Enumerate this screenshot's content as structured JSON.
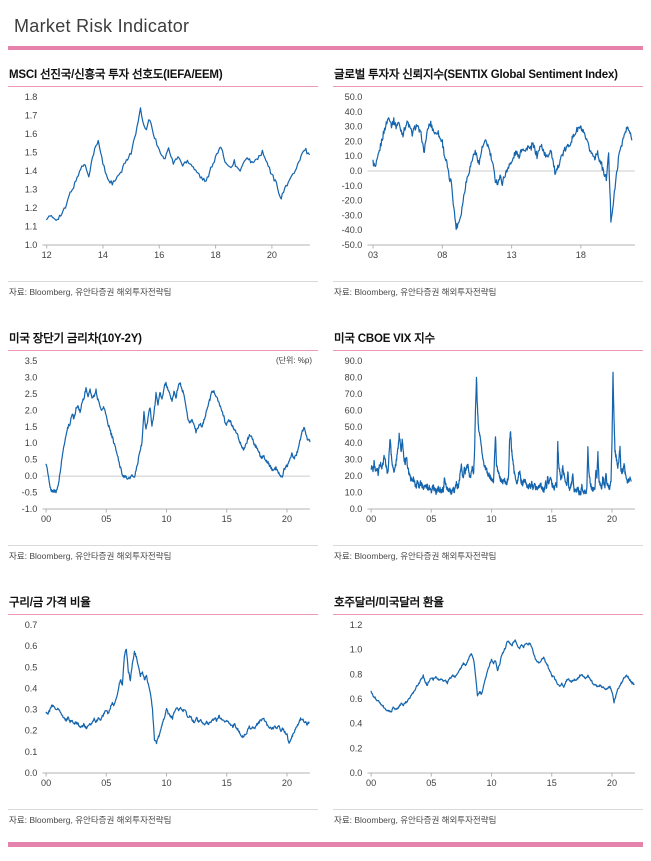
{
  "page": {
    "title": "Market Risk Indicator",
    "bar_pink": "#E583AC",
    "rule_pink": "#F096B7",
    "line_blue": "#1565AE",
    "axis_gray": "#b3b3b3",
    "zero_gray": "#cccccc"
  },
  "chart_data": [
    {
      "type": "line",
      "title": "MSCI 선진국/신흥국 투자 선호도(IEFA/EEM)",
      "source": "자료: Bloomberg, 유안타증권 해외투자전략팀",
      "xlim": [
        2011.85,
        2021.35
      ],
      "ylim": [
        1.0,
        1.8
      ],
      "yticks": [
        1.8,
        1.7,
        1.6,
        1.5,
        1.4,
        1.3,
        1.2,
        1.1,
        1.0
      ],
      "ytick_labels": [
        "1.8",
        "1.7",
        "1.6",
        "1.5",
        "1.4",
        "1.3",
        "1.2",
        "1.1",
        "1.0"
      ],
      "xticks": [
        2012,
        2014,
        2016,
        2018,
        2020
      ],
      "xtick_labels": [
        "12",
        "14",
        "16",
        "18",
        "20"
      ],
      "zero_line": false,
      "jitter": 0.012,
      "series_x": [
        2012.0,
        2021.33
      ],
      "values": [
        1.15,
        1.15,
        1.14,
        1.16,
        1.2,
        1.28,
        1.33,
        1.4,
        1.44,
        1.38,
        1.5,
        1.56,
        1.44,
        1.36,
        1.33,
        1.36,
        1.4,
        1.46,
        1.5,
        1.6,
        1.73,
        1.62,
        1.68,
        1.58,
        1.52,
        1.46,
        1.52,
        1.44,
        1.48,
        1.43,
        1.46,
        1.43,
        1.4,
        1.36,
        1.34,
        1.42,
        1.47,
        1.53,
        1.46,
        1.42,
        1.45,
        1.4,
        1.44,
        1.47,
        1.44,
        1.47,
        1.5,
        1.44,
        1.38,
        1.33,
        1.25,
        1.32,
        1.36,
        1.4,
        1.46,
        1.52,
        1.49
      ]
    },
    {
      "type": "line",
      "title": "글로벌 투자자 신뢰지수(SENTIX  Global Sentiment Index)",
      "source": "자료: Bloomberg, 유안타증권 해외투자전략팀",
      "xlim": [
        2002.6,
        2021.9
      ],
      "ylim": [
        -50,
        50
      ],
      "yticks": [
        50,
        40,
        30,
        20,
        10,
        0,
        -10,
        -20,
        -30,
        -40,
        -50
      ],
      "ytick_labels": [
        "50.0",
        "40.0",
        "30.0",
        "20.0",
        "10.0",
        "0.0",
        "-10.0",
        "-20.0",
        "-30.0",
        "-40.0",
        "-50.0"
      ],
      "xticks": [
        2003,
        2008,
        2013,
        2018
      ],
      "xtick_labels": [
        "03",
        "08",
        "13",
        "18"
      ],
      "zero_line": true,
      "jitter": 2.0,
      "series_x": [
        2003.0,
        2021.67
      ],
      "values": [
        6,
        2,
        8,
        15,
        22,
        28,
        33,
        37,
        31,
        34,
        30,
        33,
        28,
        25,
        30,
        33,
        29,
        25,
        29,
        31,
        27,
        24,
        12,
        22,
        30,
        32,
        28,
        25,
        27,
        22,
        20,
        10,
        5,
        -5,
        -8,
        -25,
        -38,
        -35,
        -30,
        -20,
        -10,
        -3,
        2,
        8,
        13,
        10,
        5,
        14,
        18,
        20,
        16,
        10,
        3,
        -6,
        -8,
        -4,
        -8,
        -3,
        0,
        5,
        5,
        10,
        13,
        9,
        14,
        16,
        13,
        17,
        14,
        18,
        15,
        10,
        15,
        17,
        13,
        9,
        11,
        15,
        6,
        -3,
        2,
        8,
        11,
        14,
        16,
        18,
        21,
        24,
        27,
        29,
        29,
        26,
        22,
        18,
        14,
        11,
        9,
        13,
        8,
        4,
        -2,
        -5,
        11,
        -33,
        -22,
        -8,
        5,
        15,
        20,
        25,
        29,
        27,
        21
      ]
    },
    {
      "type": "line",
      "title": "미국 장단기 금리차(10Y-2Y)",
      "unit_note": "(단위: %p)",
      "source": "자료: Bloomberg, 유안타증권 해외투자전략팀",
      "xlim": [
        1999.7,
        2021.9
      ],
      "ylim": [
        -1.0,
        3.5
      ],
      "yticks": [
        3.5,
        3.0,
        2.5,
        2.0,
        1.5,
        1.0,
        0.5,
        0.0,
        -0.5,
        -1.0
      ],
      "ytick_labels": [
        "3.5",
        "3.0",
        "2.5",
        "2.0",
        "1.5",
        "1.0",
        "0.5",
        "0.0",
        "-0.5",
        "-1.0"
      ],
      "xticks": [
        2000,
        2005,
        2010,
        2015,
        2020
      ],
      "xtick_labels": [
        "00",
        "05",
        "10",
        "15",
        "20"
      ],
      "zero_line": true,
      "jitter": 0.05,
      "series_x": [
        2000.0,
        2021.9
      ],
      "values": [
        0.4,
        0.05,
        -0.35,
        -0.48,
        -0.42,
        -0.5,
        -0.3,
        0.1,
        0.55,
        0.95,
        1.25,
        1.5,
        1.6,
        1.9,
        1.75,
        2.05,
        2.15,
        1.95,
        2.25,
        2.4,
        2.65,
        2.45,
        2.6,
        2.4,
        2.45,
        2.6,
        2.3,
        2.15,
        2.0,
        2.1,
        1.85,
        1.6,
        1.4,
        1.2,
        1.0,
        0.8,
        0.55,
        0.3,
        0.1,
        -0.05,
        0.0,
        -0.1,
        -0.05,
        0.02,
        -0.08,
        0.15,
        0.45,
        0.75,
        1.05,
        1.95,
        1.4,
        1.75,
        2.1,
        1.55,
        1.9,
        2.5,
        2.2,
        2.55,
        2.3,
        2.7,
        2.85,
        2.6,
        2.45,
        2.3,
        2.55,
        2.4,
        2.7,
        2.85,
        2.65,
        2.45,
        2.1,
        1.75,
        1.6,
        1.75,
        1.55,
        1.35,
        1.45,
        1.6,
        1.5,
        1.7,
        1.9,
        2.15,
        2.35,
        2.55,
        2.6,
        2.45,
        2.3,
        2.15,
        1.95,
        1.8,
        1.55,
        1.65,
        1.7,
        1.55,
        1.45,
        1.35,
        1.2,
        1.05,
        0.9,
        0.8,
        0.95,
        1.15,
        1.25,
        1.15,
        1.0,
        0.9,
        0.8,
        0.65,
        0.55,
        0.6,
        0.48,
        0.4,
        0.3,
        0.22,
        0.18,
        0.25,
        0.15,
        0.05,
        -0.04,
        0.2,
        0.28,
        0.35,
        0.55,
        0.68,
        0.55,
        0.62,
        0.8,
        1.05,
        1.3,
        1.52,
        1.3,
        1.1,
        1.05
      ]
    },
    {
      "type": "line",
      "title": "미국 CBOE VIX 지수",
      "source": "자료: Bloomberg, 유안타증권 해외투자전략팀",
      "xlim": [
        1999.7,
        2021.9
      ],
      "ylim": [
        0,
        90
      ],
      "yticks": [
        90,
        80,
        70,
        60,
        50,
        40,
        30,
        20,
        10,
        0
      ],
      "ytick_labels": [
        "90.0",
        "80.0",
        "70.0",
        "60.0",
        "50.0",
        "40.0",
        "30.0",
        "20.0",
        "10.0",
        "0.0"
      ],
      "xticks": [
        2000,
        2005,
        2010,
        2015,
        2020
      ],
      "xtick_labels": [
        "00",
        "05",
        "10",
        "15",
        "20"
      ],
      "zero_line": false,
      "jitter": 1.5,
      "series_x": [
        2000.0,
        2021.58
      ],
      "values": [
        24,
        27,
        23,
        28,
        25,
        22,
        24,
        21,
        25,
        28,
        26,
        25,
        28,
        32,
        30,
        26,
        22,
        24,
        35,
        43,
        34,
        28,
        25,
        22,
        25,
        28,
        33,
        38,
        45,
        40,
        35,
        42,
        36,
        30,
        28,
        32,
        28,
        24,
        21,
        19,
        18,
        17,
        19,
        16,
        15,
        14,
        16,
        15,
        14,
        16,
        15,
        14,
        13,
        14,
        15,
        13,
        14,
        12,
        13,
        12,
        11,
        13,
        14,
        12,
        11,
        10,
        12,
        13,
        11,
        12,
        11,
        12,
        11,
        18,
        15,
        13,
        12,
        11,
        12,
        11,
        10,
        11,
        12,
        11,
        14,
        16,
        13,
        14,
        18,
        24,
        26,
        21,
        19,
        25,
        22,
        26,
        27,
        25,
        21,
        19,
        23,
        26,
        21,
        32,
        60,
        80,
        62,
        50,
        46,
        42,
        38,
        32,
        28,
        26,
        25,
        24,
        22,
        21,
        20,
        19,
        18,
        17,
        16,
        32,
        45,
        26,
        24,
        22,
        19,
        18,
        17,
        16,
        17,
        18,
        16,
        15,
        18,
        20,
        42,
        47,
        36,
        30,
        26,
        20,
        18,
        16,
        17,
        21,
        24,
        18,
        16,
        15,
        17,
        16,
        17,
        14,
        13,
        14,
        15,
        13,
        16,
        13,
        14,
        15,
        13,
        12,
        14,
        13,
        14,
        15,
        13,
        12,
        11,
        13,
        16,
        13,
        21,
        14,
        18,
        20,
        15,
        14,
        13,
        13,
        15,
        13,
        40,
        26,
        22,
        18,
        20,
        26,
        22,
        18,
        15,
        14,
        24,
        13,
        12,
        14,
        16,
        21,
        12,
        11,
        11,
        12,
        13,
        10,
        10,
        9,
        15,
        10,
        10,
        11,
        10,
        13,
        37,
        22,
        18,
        14,
        13,
        12,
        13,
        12,
        24,
        20,
        35,
        18,
        15,
        14,
        13,
        20,
        16,
        14,
        22,
        16,
        14,
        13,
        13,
        17,
        40,
        82,
        55,
        35,
        32,
        28,
        25,
        30,
        38,
        24,
        22,
        24,
        28,
        22,
        19,
        17,
        16,
        18,
        20,
        17
      ]
    },
    {
      "type": "line",
      "title": "구리/금 가격 비율",
      "source": "자료: Bloomberg, 유안타증권 해외투자전략팀",
      "xlim": [
        1999.7,
        2021.9
      ],
      "ylim": [
        0,
        0.7
      ],
      "yticks": [
        0.7,
        0.6,
        0.5,
        0.4,
        0.3,
        0.2,
        0.1,
        0.0
      ],
      "ytick_labels": [
        "0.7",
        "0.6",
        "0.5",
        "0.4",
        "0.3",
        "0.2",
        "0.1",
        "0.0"
      ],
      "xticks": [
        2000,
        2005,
        2010,
        2015,
        2020
      ],
      "xtick_labels": [
        "00",
        "05",
        "10",
        "15",
        "20"
      ],
      "zero_line": false,
      "jitter": 0.006,
      "series_x": [
        2000.0,
        2021.83
      ],
      "values": [
        0.29,
        0.28,
        0.3,
        0.32,
        0.31,
        0.3,
        0.31,
        0.29,
        0.27,
        0.26,
        0.25,
        0.26,
        0.24,
        0.25,
        0.23,
        0.24,
        0.23,
        0.22,
        0.22,
        0.23,
        0.21,
        0.22,
        0.23,
        0.24,
        0.26,
        0.24,
        0.26,
        0.25,
        0.27,
        0.28,
        0.3,
        0.28,
        0.31,
        0.33,
        0.32,
        0.35,
        0.4,
        0.44,
        0.42,
        0.55,
        0.59,
        0.48,
        0.44,
        0.52,
        0.57,
        0.55,
        0.5,
        0.46,
        0.48,
        0.44,
        0.46,
        0.42,
        0.38,
        0.3,
        0.16,
        0.14,
        0.17,
        0.2,
        0.24,
        0.26,
        0.3,
        0.28,
        0.27,
        0.26,
        0.29,
        0.31,
        0.3,
        0.31,
        0.29,
        0.3,
        0.28,
        0.26,
        0.27,
        0.25,
        0.24,
        0.26,
        0.24,
        0.25,
        0.24,
        0.23,
        0.24,
        0.23,
        0.24,
        0.25,
        0.26,
        0.25,
        0.27,
        0.26,
        0.25,
        0.24,
        0.25,
        0.24,
        0.23,
        0.22,
        0.23,
        0.21,
        0.2,
        0.18,
        0.17,
        0.18,
        0.19,
        0.22,
        0.21,
        0.22,
        0.21,
        0.23,
        0.24,
        0.25,
        0.26,
        0.25,
        0.23,
        0.22,
        0.21,
        0.21,
        0.22,
        0.21,
        0.22,
        0.2,
        0.21,
        0.19,
        0.18,
        0.14,
        0.16,
        0.18,
        0.2,
        0.22,
        0.24,
        0.26,
        0.25,
        0.24,
        0.23,
        0.24
      ]
    },
    {
      "type": "line",
      "title": "호주달러/미국달러  환율",
      "source": "자료: Bloomberg, 유안타증권 해외투자전략팀",
      "xlim": [
        1999.7,
        2021.9
      ],
      "ylim": [
        0,
        1.2
      ],
      "yticks": [
        1.2,
        1.0,
        0.8,
        0.6,
        0.4,
        0.2,
        0.0
      ],
      "ytick_labels": [
        "1.2",
        "1.0",
        "0.8",
        "0.6",
        "0.4",
        "0.2",
        "0.0"
      ],
      "xticks": [
        2000,
        2005,
        2010,
        2015,
        2020
      ],
      "xtick_labels": [
        "00",
        "05",
        "10",
        "15",
        "20"
      ],
      "zero_line": false,
      "jitter": 0.008,
      "series_x": [
        2000.0,
        2021.83
      ],
      "values": [
        0.66,
        0.63,
        0.61,
        0.59,
        0.58,
        0.56,
        0.54,
        0.52,
        0.5,
        0.51,
        0.49,
        0.53,
        0.51,
        0.52,
        0.54,
        0.56,
        0.55,
        0.57,
        0.58,
        0.6,
        0.63,
        0.65,
        0.68,
        0.71,
        0.73,
        0.76,
        0.79,
        0.74,
        0.71,
        0.75,
        0.77,
        0.76,
        0.78,
        0.76,
        0.75,
        0.76,
        0.74,
        0.75,
        0.73,
        0.76,
        0.78,
        0.79,
        0.78,
        0.8,
        0.83,
        0.86,
        0.89,
        0.87,
        0.9,
        0.94,
        0.97,
        0.93,
        0.8,
        0.62,
        0.66,
        0.64,
        0.7,
        0.77,
        0.82,
        0.88,
        0.92,
        0.89,
        0.91,
        0.83,
        0.88,
        0.95,
        0.99,
        1.02,
        1.07,
        1.05,
        1.03,
        1.06,
        1.08,
        1.03,
        1.01,
        1.04,
        1.02,
        1.05,
        1.04,
        1.05,
        1.03,
        0.96,
        0.92,
        0.9,
        0.89,
        0.92,
        0.94,
        0.89,
        0.87,
        0.83,
        0.79,
        0.78,
        0.75,
        0.72,
        0.7,
        0.73,
        0.7,
        0.74,
        0.76,
        0.75,
        0.74,
        0.76,
        0.75,
        0.77,
        0.79,
        0.8,
        0.78,
        0.77,
        0.79,
        0.76,
        0.74,
        0.72,
        0.71,
        0.7,
        0.71,
        0.7,
        0.69,
        0.68,
        0.69,
        0.7,
        0.66,
        0.57,
        0.63,
        0.68,
        0.71,
        0.74,
        0.77,
        0.79,
        0.78,
        0.75,
        0.73,
        0.72
      ]
    }
  ]
}
